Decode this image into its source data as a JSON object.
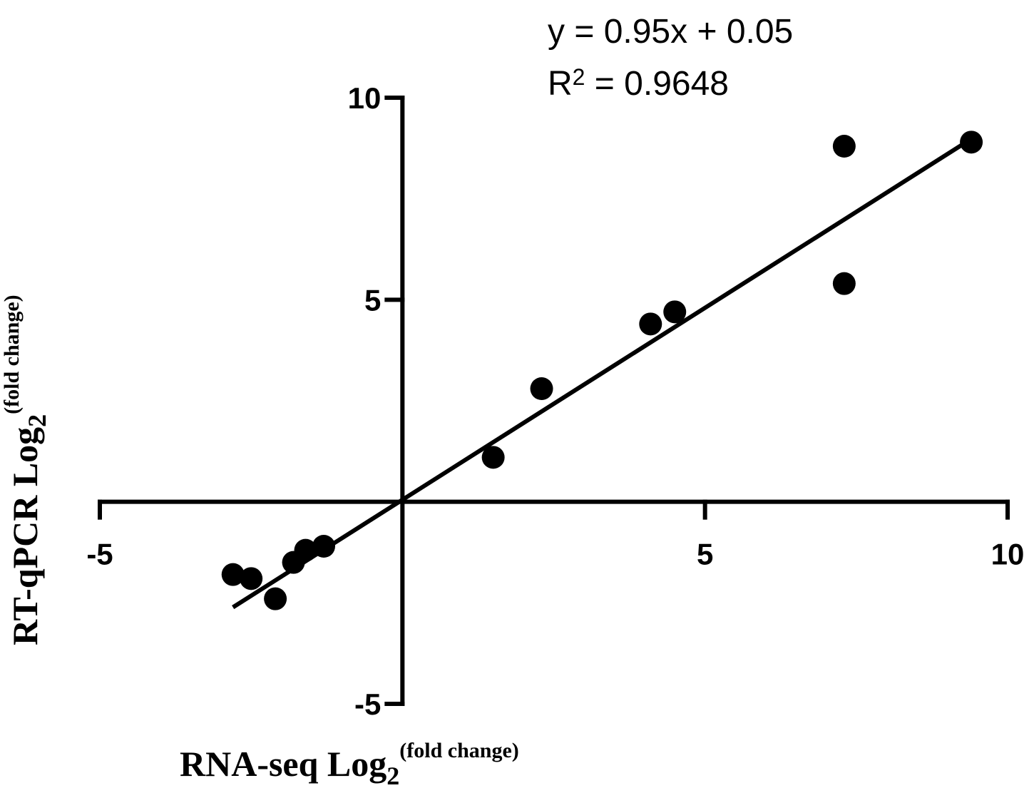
{
  "chart_data": {
    "type": "scatter",
    "title": "",
    "xlabel": {
      "main": "RNA-seq Log",
      "sub": "2",
      "sup": "(fold change)"
    },
    "ylabel": {
      "main": "RT-qPCR Log",
      "sub": "2",
      "sup": "(fold change)"
    },
    "xlim": [
      -5,
      10
    ],
    "ylim": [
      -5,
      10
    ],
    "xticks": [
      "-5",
      "5",
      "10"
    ],
    "yticks": [
      "10",
      "5",
      "-5"
    ],
    "points": [
      {
        "x": -2.8,
        "y": -1.8
      },
      {
        "x": -2.5,
        "y": -1.9
      },
      {
        "x": -2.1,
        "y": -2.4
      },
      {
        "x": -1.8,
        "y": -1.5
      },
      {
        "x": -1.6,
        "y": -1.2
      },
      {
        "x": -1.3,
        "y": -1.1
      },
      {
        "x": 1.5,
        "y": 1.1
      },
      {
        "x": 2.3,
        "y": 2.8
      },
      {
        "x": 4.1,
        "y": 4.4
      },
      {
        "x": 4.5,
        "y": 4.7
      },
      {
        "x": 7.3,
        "y": 5.4
      },
      {
        "x": 7.3,
        "y": 8.8
      },
      {
        "x": 9.4,
        "y": 8.9
      }
    ],
    "fit": {
      "slope": 0.95,
      "intercept": 0.05,
      "x_range": [
        -2.8,
        9.4
      ]
    },
    "annotations": {
      "equation": "y = 0.95x + 0.05",
      "r2_prefix": "R",
      "r2_sup": "2",
      "r2_suffix": " = 0.9648"
    },
    "grid": false,
    "legend": "none",
    "colors": {
      "marker": "#000000",
      "line": "#000000"
    }
  }
}
